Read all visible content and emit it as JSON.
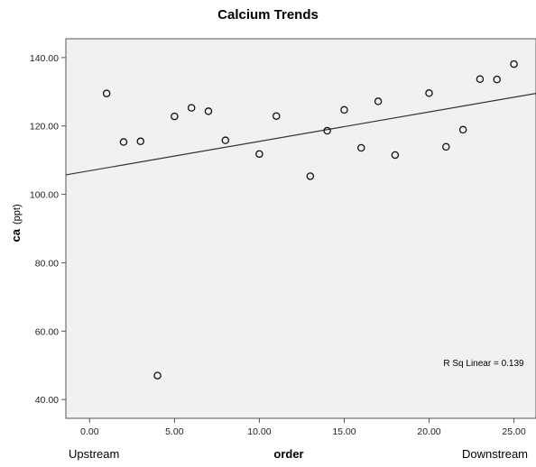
{
  "chart_data": {
    "type": "scatter",
    "title": "Calcium Trends",
    "xlabel": "order",
    "ylabel": "ca",
    "ylabel_unit": "(ppt)",
    "x_left_label": "Upstream",
    "x_right_label": "Downstream",
    "xlim": [
      -1.4,
      26.3
    ],
    "ylim": [
      34.5,
      145.5
    ],
    "x_ticks": [
      0,
      5,
      10,
      15,
      20,
      25
    ],
    "x_tick_labels": [
      "0.00",
      "5.00",
      "10.00",
      "15.00",
      "20.00",
      "25.00"
    ],
    "y_ticks": [
      40,
      60,
      80,
      100,
      120,
      140
    ],
    "y_tick_labels": [
      "40.00",
      "60.00",
      "80.00",
      "100.00",
      "120.00",
      "140.00"
    ],
    "grid": false,
    "marker": "hollow-circle",
    "background": "#f1f1f1",
    "points": [
      {
        "x": 1,
        "y": 129.5
      },
      {
        "x": 2,
        "y": 115.3
      },
      {
        "x": 3,
        "y": 115.5
      },
      {
        "x": 4,
        "y": 47.0
      },
      {
        "x": 5,
        "y": 122.8
      },
      {
        "x": 6,
        "y": 125.3
      },
      {
        "x": 7,
        "y": 124.3
      },
      {
        "x": 8,
        "y": 115.8
      },
      {
        "x": 10,
        "y": 111.8
      },
      {
        "x": 11,
        "y": 122.9
      },
      {
        "x": 13,
        "y": 105.3
      },
      {
        "x": 14,
        "y": 118.6
      },
      {
        "x": 15,
        "y": 124.7
      },
      {
        "x": 16,
        "y": 113.6
      },
      {
        "x": 17,
        "y": 127.2
      },
      {
        "x": 18,
        "y": 111.5
      },
      {
        "x": 20,
        "y": 129.6
      },
      {
        "x": 21,
        "y": 113.9
      },
      {
        "x": 22,
        "y": 118.9
      },
      {
        "x": 23,
        "y": 133.7
      },
      {
        "x": 24,
        "y": 133.6
      },
      {
        "x": 25,
        "y": 138.1
      }
    ],
    "fit_line": {
      "type": "linear",
      "intercept": 106.9,
      "slope": 0.86
    },
    "annotation": "R Sq Linear = 0.139"
  }
}
